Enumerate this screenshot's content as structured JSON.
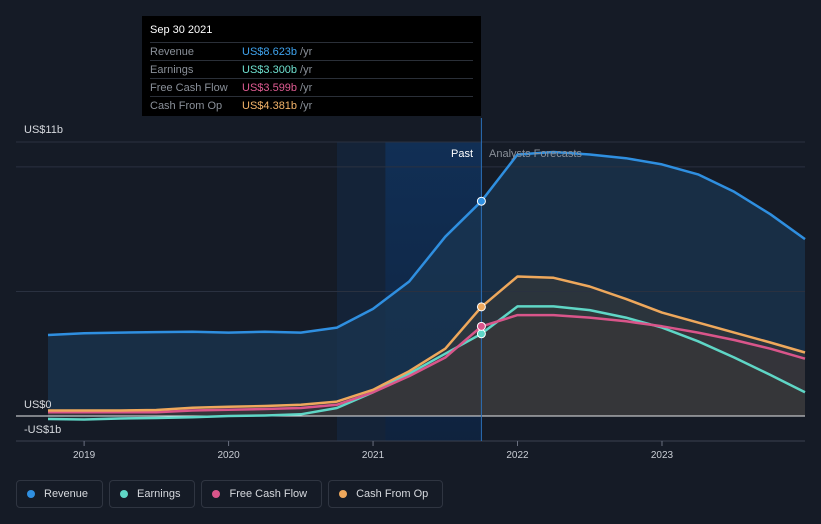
{
  "tooltip": {
    "date": "Sep 30 2021",
    "rows": [
      {
        "label": "Revenue",
        "value": "US$8.623b",
        "unit": "/yr",
        "color": "#3fa3ee"
      },
      {
        "label": "Earnings",
        "value": "US$3.300b",
        "unit": "/yr",
        "color": "#6ee0cf"
      },
      {
        "label": "Free Cash Flow",
        "value": "US$3.599b",
        "unit": "/yr",
        "color": "#e05c93"
      },
      {
        "label": "Cash From Op",
        "value": "US$4.381b",
        "unit": "/yr",
        "color": "#f4b46a"
      }
    ]
  },
  "legend": [
    {
      "label": "Revenue",
      "color": "#2f8fe0"
    },
    {
      "label": "Earnings",
      "color": "#5fd6c6"
    },
    {
      "label": "Free Cash Flow",
      "color": "#d9558a"
    },
    {
      "label": "Cash From Op",
      "color": "#eea85c"
    }
  ],
  "chart_data": {
    "type": "area",
    "y_label_top": "US$11b",
    "y_label_zero": "US$0",
    "y_label_bottom": "-US$1b",
    "ylim": [
      -1,
      11
    ],
    "xlim": [
      2018.75,
      2023.99
    ],
    "past_label": "Past",
    "forecast_label": "Analysts Forecasts",
    "past_end": 2021.75,
    "highlight_start": 2020.75,
    "x_ticks": [
      {
        "label": "2019",
        "value": 2019.0
      },
      {
        "label": "2020",
        "value": 2020.0
      },
      {
        "label": "2021",
        "value": 2021.0
      },
      {
        "label": "2022",
        "value": 2022.0
      },
      {
        "label": "2023",
        "value": 2023.0
      }
    ],
    "series": [
      {
        "name": "Revenue",
        "color": "#2f8fe0",
        "x": [
          2018.75,
          2019.0,
          2019.25,
          2019.5,
          2019.75,
          2020.0,
          2020.25,
          2020.5,
          2020.75,
          2021.0,
          2021.25,
          2021.5,
          2021.75,
          2022.0,
          2022.25,
          2022.5,
          2022.75,
          2023.0,
          2023.25,
          2023.5,
          2023.75,
          2023.99
        ],
        "values": [
          3.25,
          3.32,
          3.35,
          3.37,
          3.38,
          3.35,
          3.38,
          3.35,
          3.55,
          4.3,
          5.4,
          7.2,
          8.623,
          10.5,
          10.6,
          10.5,
          10.35,
          10.1,
          9.7,
          9.0,
          8.1,
          7.1
        ]
      },
      {
        "name": "Earnings",
        "color": "#5fd6c6",
        "x": [
          2018.75,
          2019.0,
          2019.25,
          2019.5,
          2019.75,
          2020.0,
          2020.25,
          2020.5,
          2020.75,
          2021.0,
          2021.25,
          2021.5,
          2021.75,
          2022.0,
          2022.25,
          2022.5,
          2022.75,
          2023.0,
          2023.25,
          2023.5,
          2023.75,
          2023.99
        ],
        "values": [
          -0.12,
          -0.14,
          -0.1,
          -0.08,
          -0.05,
          0.0,
          0.02,
          0.07,
          0.32,
          0.95,
          1.7,
          2.5,
          3.3,
          4.4,
          4.4,
          4.25,
          3.95,
          3.55,
          3.0,
          2.35,
          1.65,
          0.95
        ]
      },
      {
        "name": "Free Cash Flow",
        "color": "#d9558a",
        "x": [
          2018.75,
          2019.0,
          2019.25,
          2019.5,
          2019.75,
          2020.0,
          2020.25,
          2020.5,
          2020.75,
          2021.0,
          2021.25,
          2021.5,
          2021.75,
          2022.0,
          2022.25,
          2022.5,
          2022.75,
          2023.0,
          2023.25,
          2023.5,
          2023.75,
          2023.99
        ],
        "values": [
          0.15,
          0.15,
          0.15,
          0.15,
          0.22,
          0.25,
          0.28,
          0.32,
          0.45,
          0.95,
          1.6,
          2.35,
          3.599,
          4.05,
          4.05,
          3.95,
          3.8,
          3.6,
          3.35,
          3.05,
          2.7,
          2.3
        ]
      },
      {
        "name": "Cash From Op",
        "color": "#eea85c",
        "x": [
          2018.75,
          2019.0,
          2019.25,
          2019.5,
          2019.75,
          2020.0,
          2020.25,
          2020.5,
          2020.75,
          2021.0,
          2021.25,
          2021.5,
          2021.75,
          2022.0,
          2022.25,
          2022.5,
          2022.75,
          2023.0,
          2023.25,
          2023.5,
          2023.75,
          2023.99
        ],
        "values": [
          0.22,
          0.22,
          0.22,
          0.24,
          0.33,
          0.37,
          0.4,
          0.45,
          0.58,
          1.05,
          1.8,
          2.7,
          4.381,
          5.6,
          5.55,
          5.2,
          4.7,
          4.15,
          3.75,
          3.35,
          2.95,
          2.55
        ]
      }
    ]
  }
}
